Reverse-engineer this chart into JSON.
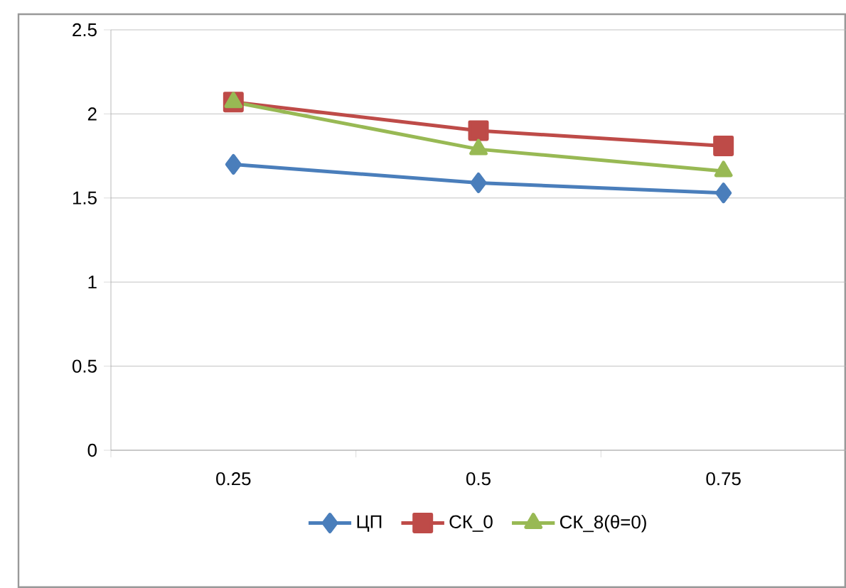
{
  "chart_data": {
    "type": "line",
    "categories": [
      "0.25",
      "0.5",
      "0.75"
    ],
    "series": [
      {
        "name": "ЦП",
        "color": "#4a7ebb",
        "marker": "diamond",
        "values": [
          1.7,
          1.59,
          1.53
        ]
      },
      {
        "name": "СК_0",
        "color": "#be4b48",
        "marker": "square",
        "values": [
          2.07,
          1.9,
          1.81
        ]
      },
      {
        "name": "СК_8(θ=0)",
        "color": "#98b954",
        "marker": "triangle",
        "values": [
          2.07,
          1.79,
          1.66
        ]
      }
    ],
    "ylim": [
      0,
      2.5
    ],
    "yticks": [
      0,
      0.5,
      1,
      1.5,
      2,
      2.5
    ],
    "grid": "y",
    "legend": "bottom",
    "line_style": "solid"
  }
}
